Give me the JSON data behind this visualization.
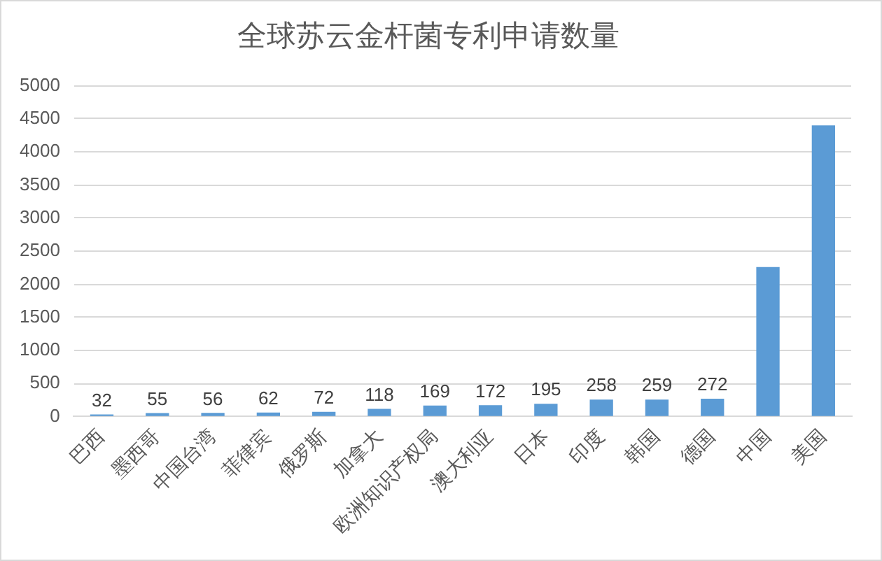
{
  "chart_data": {
    "type": "bar",
    "title": "全球苏云金杆菌专利申请数量",
    "categories": [
      "巴西",
      "墨西哥",
      "中国台湾",
      "菲律宾",
      "俄罗斯",
      "加拿大",
      "欧洲知识产权局",
      "澳大利亚",
      "日本",
      "印度",
      "韩国",
      "德国",
      "中国",
      "美国"
    ],
    "values": [
      32,
      55,
      56,
      62,
      72,
      118,
      169,
      172,
      195,
      258,
      259,
      272,
      2260,
      4400
    ],
    "value_labels": [
      "32",
      "55",
      "56",
      "62",
      "72",
      "118",
      "169",
      "172",
      "195",
      "258",
      "259",
      "272",
      null,
      null
    ],
    "color": "#5b9bd5",
    "ylim": [
      0,
      5000
    ],
    "yticks": [
      0,
      500,
      1000,
      1500,
      2000,
      2500,
      3000,
      3500,
      4000,
      4500,
      5000
    ],
    "grid": "y"
  }
}
